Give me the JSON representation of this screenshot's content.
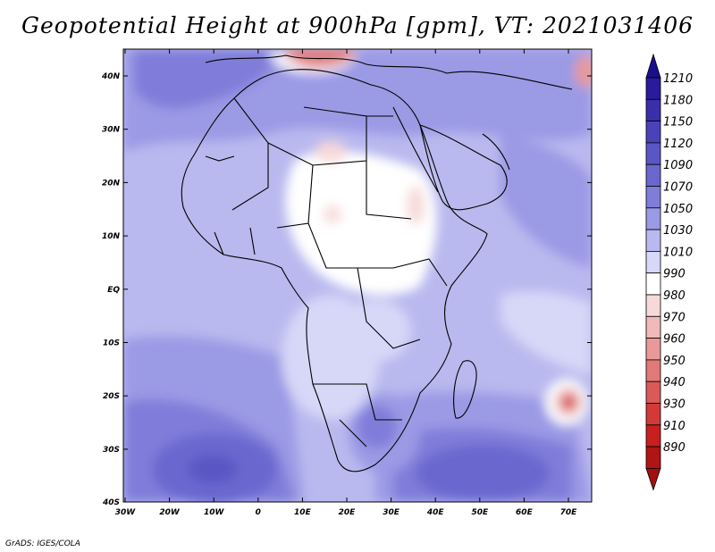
{
  "title": "Geopotential Height at 900hPa [gpm], VT: 2021031406",
  "credit": "GrADS: IGES/COLA",
  "map": {
    "lon_ticks": [
      "30W",
      "20W",
      "10W",
      "0",
      "10E",
      "20E",
      "30E",
      "40E",
      "50E",
      "60E",
      "70E"
    ],
    "lat_ticks": [
      "40N",
      "30N",
      "20N",
      "10N",
      "EQ",
      "10S",
      "20S",
      "30S",
      "40S"
    ]
  },
  "colorbar": {
    "labels": [
      "1210",
      "1180",
      "1150",
      "1120",
      "1090",
      "1070",
      "1050",
      "1030",
      "1010",
      "990",
      "980",
      "970",
      "960",
      "950",
      "940",
      "930",
      "910",
      "890"
    ],
    "colors": [
      "#2a1a9c",
      "#3a2eaa",
      "#4a42b8",
      "#5a56c4",
      "#6b67cf",
      "#7f7dd9",
      "#9b9ae5",
      "#b9b9ef",
      "#d7d7f8",
      "#ffffff",
      "#f7d9d9",
      "#f0b9b9",
      "#e99999",
      "#e27979",
      "#da5959",
      "#d33939",
      "#c81f1f",
      "#b01414"
    ],
    "top_arrow_color": "#1a0f8c",
    "bottom_arrow_color": "#a01010"
  }
}
